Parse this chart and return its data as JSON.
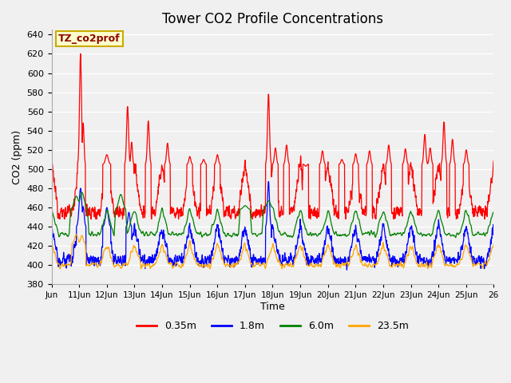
{
  "title": "Tower CO2 Profile Concentrations",
  "xlabel": "Time",
  "ylabel": "CO2 (ppm)",
  "ylim": [
    380,
    645
  ],
  "yticks": [
    380,
    400,
    420,
    440,
    460,
    480,
    500,
    520,
    540,
    560,
    580,
    600,
    620,
    640
  ],
  "bg_color": "#f0f0f0",
  "plot_bg_color": "#f0f0f0",
  "n_days": 16,
  "points_per_day": 144,
  "xtick_start_day": 10,
  "series_colors": {
    "0.35m": "red",
    "1.8m": "blue",
    "6.0m": "green",
    "23.5m": "orange"
  },
  "legend_label": "TZ_co2prof",
  "legend_box_color": "#ffffcc",
  "legend_box_edge": "#ccaa00",
  "legend_text_color": "#8B0000"
}
